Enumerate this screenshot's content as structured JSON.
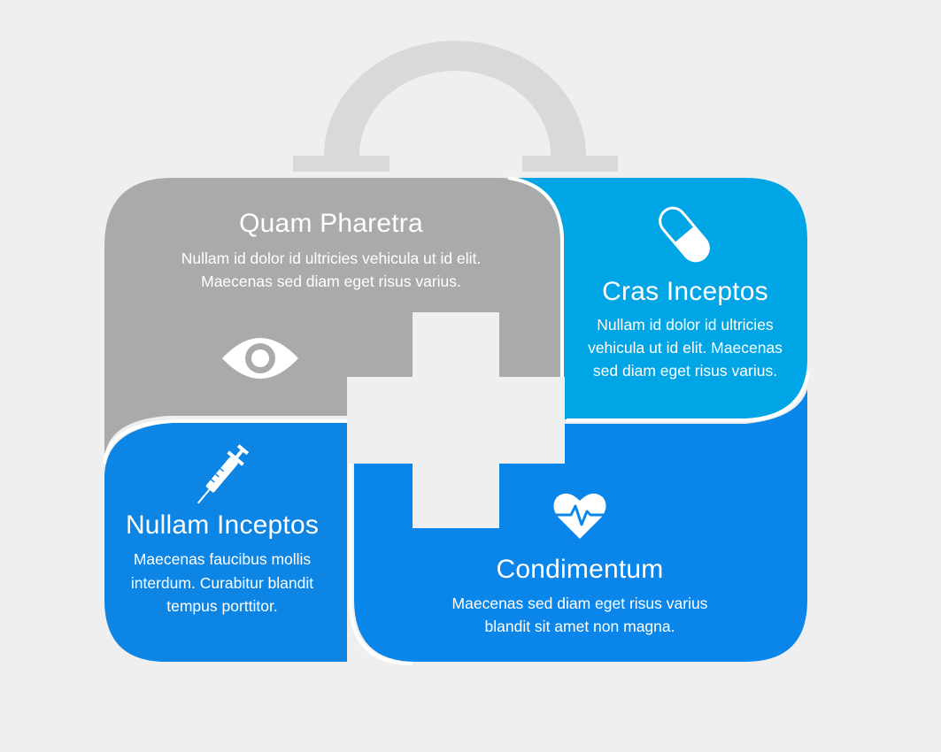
{
  "colors": {
    "background": "#efefef",
    "handle": "#d9d9d9",
    "gray_panel": "#aaaaaa",
    "light_blue_panel": "#00a5e6",
    "blue_panel_left": "#0d85e5",
    "blue_panel_right": "#0a86ea",
    "cross": "#efefef",
    "icon": "#ffffff"
  },
  "sections": {
    "top_left": {
      "title": "Quam Pharetra",
      "line1": "Nullam id dolor id ultricies vehicula ut id elit.",
      "line2": "Maecenas sed diam eget risus varius.",
      "icon": "eye-icon"
    },
    "top_right": {
      "title": "Cras Inceptos",
      "line1": "Nullam id dolor id ultricies",
      "line2": "vehicula ut id elit. Maecenas",
      "line3": "sed diam eget risus varius.",
      "icon": "capsule-pill-icon"
    },
    "bottom_left": {
      "title": "Nullam Inceptos",
      "line1": "Maecenas faucibus mollis",
      "line2": "interdum. Curabitur blandit",
      "line3": "tempus porttitor.",
      "icon": "syringe-icon"
    },
    "bottom_right": {
      "title": "Condimentum",
      "line1": "Maecenas sed diam eget risus varius",
      "line2": "blandit sit amet non magna.",
      "icon": "heartbeat-icon"
    }
  }
}
